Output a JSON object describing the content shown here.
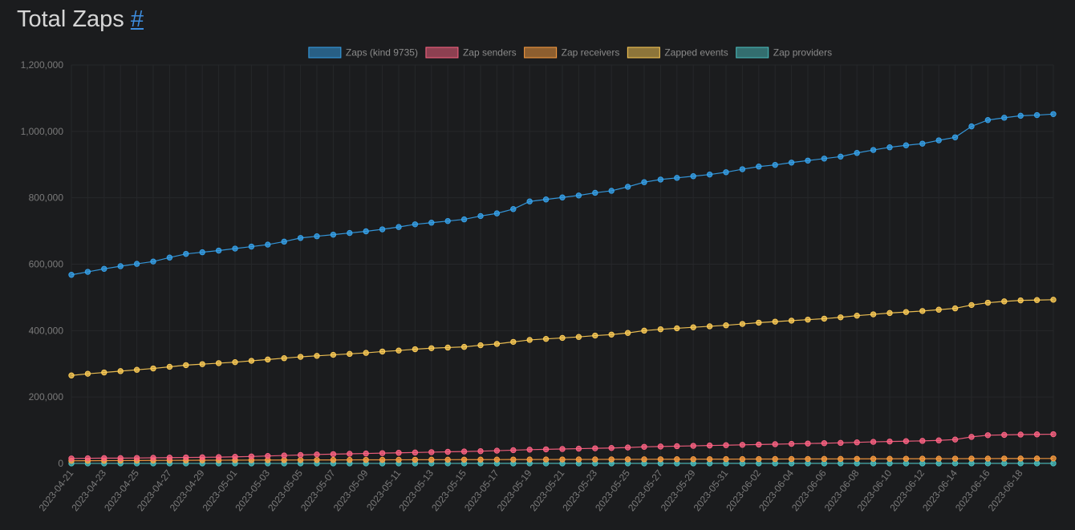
{
  "header": {
    "title": "Total Zaps",
    "anchor_label": "#"
  },
  "colors": {
    "background": "#1b1c1e",
    "grid": "#26272a",
    "zaps": "#36a2eb",
    "senders": "#ff6384",
    "receivers": "#ff9f40",
    "events": "#ffcd56",
    "providers": "#4bc0c0"
  },
  "chart_data": {
    "type": "line",
    "title": "Total Zaps",
    "xlabel": "",
    "ylabel": "",
    "ylim": [
      0,
      1200000
    ],
    "yticks": [
      0,
      200000,
      400000,
      600000,
      800000,
      1000000,
      1200000
    ],
    "ytick_labels": [
      "0",
      "200,000",
      "400,000",
      "600,000",
      "800,000",
      "1,000,000",
      "1,200,000"
    ],
    "legend_position": "top-center",
    "categories": [
      "2023-04-21",
      "2023-04-22",
      "2023-04-23",
      "2023-04-24",
      "2023-04-25",
      "2023-04-26",
      "2023-04-27",
      "2023-04-28",
      "2023-04-29",
      "2023-04-30",
      "2023-05-01",
      "2023-05-02",
      "2023-05-03",
      "2023-05-04",
      "2023-05-05",
      "2023-05-06",
      "2023-05-07",
      "2023-05-08",
      "2023-05-09",
      "2023-05-10",
      "2023-05-11",
      "2023-05-12",
      "2023-05-13",
      "2023-05-14",
      "2023-05-15",
      "2023-05-16",
      "2023-05-17",
      "2023-05-18",
      "2023-05-19",
      "2023-05-20",
      "2023-05-21",
      "2023-05-22",
      "2023-05-23",
      "2023-05-24",
      "2023-05-25",
      "2023-05-26",
      "2023-05-27",
      "2023-05-28",
      "2023-05-29",
      "2023-05-30",
      "2023-05-31",
      "2023-06-01",
      "2023-06-02",
      "2023-06-03",
      "2023-06-04",
      "2023-06-05",
      "2023-06-06",
      "2023-06-07",
      "2023-06-08",
      "2023-06-09",
      "2023-06-10",
      "2023-06-11",
      "2023-06-12",
      "2023-06-13",
      "2023-06-14",
      "2023-06-15",
      "2023-06-16",
      "2023-06-17",
      "2023-06-18",
      "2023-06-19",
      "2023-06-20"
    ],
    "xtick_labels": [
      "2023-04-21",
      "2023-04-23",
      "2023-04-25",
      "2023-04-27",
      "2023-04-29",
      "2023-05-01",
      "2023-05-03",
      "2023-05-05",
      "2023-05-07",
      "2023-05-09",
      "2023-05-11",
      "2023-05-13",
      "2023-05-15",
      "2023-05-17",
      "2023-05-19",
      "2023-05-21",
      "2023-05-23",
      "2023-05-25",
      "2023-05-27",
      "2023-05-29",
      "2023-05-31",
      "2023-06-02",
      "2023-06-04",
      "2023-06-06",
      "2023-06-08",
      "2023-06-10",
      "2023-06-12",
      "2023-06-14",
      "2023-06-16",
      "2023-06-18"
    ],
    "series": [
      {
        "key": "zaps",
        "name": "Zaps (kind 9735)",
        "color": "#36a2eb",
        "values": [
          568000,
          577000,
          586000,
          594000,
          601000,
          608000,
          620000,
          631000,
          636000,
          641000,
          647000,
          653000,
          659000,
          668000,
          679000,
          684000,
          689000,
          694000,
          699000,
          705000,
          712000,
          720000,
          725000,
          730000,
          735000,
          745000,
          753000,
          766000,
          789000,
          795000,
          801000,
          807000,
          815000,
          821000,
          833000,
          847000,
          855000,
          860000,
          865000,
          870000,
          877000,
          886000,
          894000,
          899000,
          906000,
          912000,
          918000,
          924000,
          935000,
          944000,
          952000,
          958000,
          963000,
          973000,
          982000,
          1015000,
          1034000,
          1041000,
          1047000,
          1049000,
          1052000
        ]
      },
      {
        "key": "senders",
        "name": "Zap senders",
        "color": "#ff6384",
        "values": [
          15000,
          15500,
          16000,
          16000,
          16500,
          17000,
          17500,
          18000,
          18500,
          19000,
          20000,
          21000,
          22500,
          24000,
          25500,
          27000,
          28000,
          29000,
          30000,
          31000,
          32000,
          33000,
          34000,
          35000,
          36000,
          37000,
          38500,
          40000,
          41500,
          42500,
          43500,
          44500,
          45500,
          46500,
          48000,
          50000,
          51000,
          52000,
          53000,
          54000,
          55000,
          56000,
          57000,
          58000,
          59000,
          60000,
          61000,
          62000,
          63500,
          65000,
          66000,
          67000,
          68000,
          69500,
          72000,
          80000,
          85000,
          86000,
          87000,
          87500,
          88000
        ]
      },
      {
        "key": "receivers",
        "name": "Zap receivers",
        "color": "#ff9f40",
        "values": [
          8000,
          8200,
          8400,
          8600,
          8800,
          9000,
          9200,
          9400,
          9600,
          9800,
          10000,
          10100,
          10200,
          10300,
          10400,
          10500,
          10600,
          10700,
          10800,
          10900,
          11000,
          11100,
          11200,
          11300,
          11400,
          11500,
          11600,
          11700,
          11800,
          11900,
          12000,
          12100,
          12200,
          12300,
          12400,
          12500,
          12600,
          12700,
          12800,
          12900,
          13000,
          13100,
          13200,
          13300,
          13400,
          13500,
          13600,
          13700,
          13800,
          13900,
          14000,
          14100,
          14200,
          14300,
          14400,
          14500,
          14600,
          14700,
          14800,
          14900,
          15000
        ]
      },
      {
        "key": "events",
        "name": "Zapped events",
        "color": "#ffcd56",
        "values": [
          265000,
          270000,
          274000,
          278000,
          282000,
          286000,
          291000,
          296000,
          299000,
          302000,
          305000,
          309000,
          313000,
          317000,
          321000,
          324000,
          327000,
          330000,
          333000,
          337000,
          340000,
          344000,
          347000,
          349000,
          351000,
          356000,
          360000,
          366000,
          372000,
          375000,
          378000,
          381000,
          385000,
          388000,
          393000,
          400000,
          404000,
          407000,
          410000,
          413000,
          416000,
          420000,
          424000,
          427000,
          430000,
          433000,
          436000,
          440000,
          445000,
          449000,
          453000,
          456000,
          459000,
          463000,
          467000,
          477000,
          484000,
          488000,
          491000,
          492000,
          493000
        ]
      },
      {
        "key": "providers",
        "name": "Zap providers",
        "color": "#4bc0c0",
        "values": [
          150,
          150,
          155,
          155,
          160,
          160,
          165,
          165,
          170,
          170,
          175,
          175,
          180,
          180,
          185,
          185,
          190,
          190,
          195,
          195,
          200,
          200,
          205,
          205,
          210,
          210,
          215,
          215,
          220,
          220,
          225,
          225,
          230,
          230,
          235,
          235,
          240,
          240,
          245,
          245,
          250,
          250,
          255,
          255,
          260,
          260,
          265,
          265,
          270,
          270,
          275,
          275,
          280,
          280,
          285,
          285,
          290,
          290,
          295,
          295,
          300
        ]
      }
    ]
  }
}
